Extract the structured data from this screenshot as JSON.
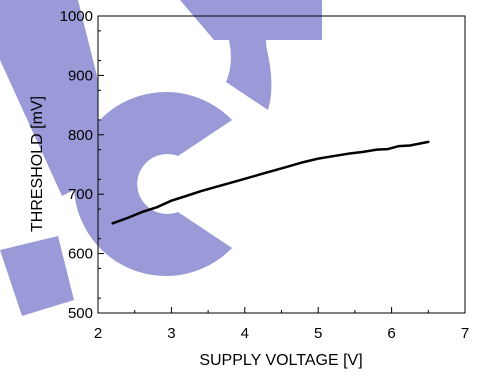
{
  "chart_data": {
    "type": "line",
    "xlabel": "SUPPLY VOLTAGE [V]",
    "ylabel": "THRESHOLD [mV]",
    "xlim": [
      2,
      7
    ],
    "ylim": [
      500,
      1000
    ],
    "x_ticks": [
      "2",
      "3",
      "4",
      "5",
      "6",
      "7"
    ],
    "y_ticks": [
      "500",
      "600",
      "700",
      "800",
      "900",
      "1000"
    ],
    "grid": false,
    "series": [
      {
        "color": "#000000",
        "points": [
          [
            2.2,
            651
          ],
          [
            2.4,
            660
          ],
          [
            2.6,
            670
          ],
          [
            2.8,
            678
          ],
          [
            3.0,
            689
          ],
          [
            3.2,
            697
          ],
          [
            3.4,
            705
          ],
          [
            3.6,
            712
          ],
          [
            3.8,
            719
          ],
          [
            4.0,
            726
          ],
          [
            4.2,
            733
          ],
          [
            4.4,
            740
          ],
          [
            4.6,
            747
          ],
          [
            4.8,
            754
          ],
          [
            5.0,
            760
          ],
          [
            5.2,
            764
          ],
          [
            5.4,
            768
          ],
          [
            5.6,
            771
          ],
          [
            5.8,
            775
          ],
          [
            5.95,
            776
          ],
          [
            6.1,
            781
          ],
          [
            6.25,
            782
          ],
          [
            6.5,
            788
          ]
        ]
      }
    ],
    "watermark": {
      "text": "ct",
      "color": "#9a9ad8"
    }
  }
}
